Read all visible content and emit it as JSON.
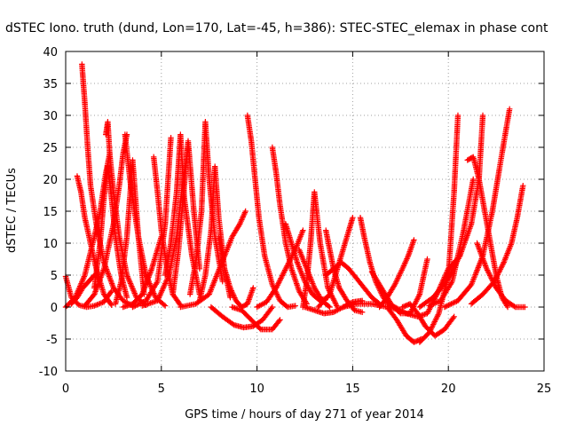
{
  "chart_data": {
    "type": "scatter",
    "title": "dSTEC Iono. truth (dund, Lon=170, Lat=-45, h=386): STEC-STEC_elemax in phase cont",
    "xlabel": "GPS time / hours of day 271 of year 2014",
    "ylabel": "dSTEC  / TECUs",
    "xlim": [
      0,
      25
    ],
    "ylim": [
      -10,
      40
    ],
    "xticks": [
      0,
      5,
      10,
      15,
      20,
      25
    ],
    "yticks": [
      -10,
      -5,
      0,
      5,
      10,
      15,
      20,
      25,
      30,
      35,
      40
    ],
    "grid": true,
    "marker": "plus",
    "color": "#ff0000",
    "series": [
      {
        "x": [
          0.0,
          0.3,
          0.7,
          1.1,
          1.5,
          2.0,
          2.4
        ],
        "y": [
          4.8,
          1.5,
          0.3,
          0.0,
          0.2,
          0.8,
          2.5
        ]
      },
      {
        "x": [
          0.3,
          0.6,
          0.9,
          1.2,
          1.5
        ],
        "y": [
          0.5,
          1.5,
          3.0,
          4.0,
          5.0
        ]
      },
      {
        "x": [
          0.6,
          0.8,
          1.0,
          1.3,
          1.6,
          2.0,
          2.4
        ],
        "y": [
          20.5,
          18.0,
          14.0,
          10.0,
          6.0,
          2.0,
          0.3
        ]
      },
      {
        "x": [
          0.85,
          1.0,
          1.15,
          1.3,
          1.6,
          2.0,
          2.5,
          3.0,
          3.5
        ],
        "y": [
          38.0,
          32.0,
          25.0,
          19.0,
          13.0,
          7.0,
          3.0,
          1.0,
          0.2
        ]
      },
      {
        "x": [
          0.0,
          0.5,
          1.0,
          1.5,
          1.8,
          2.1,
          2.3
        ],
        "y": [
          0.0,
          1.5,
          5.0,
          11.0,
          15.0,
          21.0,
          24.0
        ]
      },
      {
        "x": [
          1.5,
          1.8,
          2.0,
          2.2,
          2.4,
          2.6,
          2.9,
          3.2
        ],
        "y": [
          3.0,
          10.0,
          17.0,
          22.0,
          17.0,
          11.0,
          5.0,
          1.5
        ]
      },
      {
        "x": [
          2.1,
          2.2,
          2.3,
          2.5,
          2.8,
          3.2,
          3.7,
          4.2
        ],
        "y": [
          27.0,
          29.0,
          24.0,
          18.0,
          11.0,
          5.0,
          1.5,
          0.3
        ]
      },
      {
        "x": [
          1.0,
          1.5,
          2.0,
          2.5,
          2.8,
          3.0,
          3.2
        ],
        "y": [
          0.2,
          2.0,
          6.0,
          13.0,
          19.0,
          24.0,
          27.0
        ]
      },
      {
        "x": [
          3.1,
          3.4,
          3.8,
          4.2,
          4.7,
          5.2
        ],
        "y": [
          27.0,
          19.0,
          11.0,
          5.0,
          1.5,
          0.2
        ]
      },
      {
        "x": [
          2.6,
          2.9,
          3.2,
          3.5,
          3.8,
          4.1
        ],
        "y": [
          0.5,
          4.0,
          11.0,
          23.0,
          11.0,
          2.0
        ]
      },
      {
        "x": [
          3.0,
          3.5,
          4.0,
          4.5,
          5.0
        ],
        "y": [
          0.0,
          0.5,
          2.0,
          6.0,
          11.0
        ]
      },
      {
        "x": [
          4.6,
          4.8,
          5.0,
          5.3,
          5.6,
          6.0
        ],
        "y": [
          23.5,
          18.0,
          12.0,
          6.0,
          2.0,
          0.3
        ]
      },
      {
        "x": [
          3.5,
          4.2,
          4.8,
          5.2,
          5.5
        ],
        "y": [
          0.0,
          1.0,
          4.0,
          13.0,
          26.5
        ]
      },
      {
        "x": [
          5.2,
          5.5,
          5.8,
          6.0,
          6.2,
          6.6,
          7.0
        ],
        "y": [
          5.0,
          10.0,
          18.0,
          27.0,
          17.0,
          8.0,
          2.0
        ]
      },
      {
        "x": [
          5.6,
          5.9,
          6.2,
          6.4,
          6.7,
          7.0
        ],
        "y": [
          2.0,
          9.0,
          19.0,
          26.0,
          15.0,
          6.0
        ]
      },
      {
        "x": [
          4.0,
          4.8,
          5.4,
          5.8,
          6.1,
          6.4
        ],
        "y": [
          0.2,
          1.0,
          5.0,
          11.0,
          19.0,
          25.0
        ]
      },
      {
        "x": [
          6.5,
          6.8,
          7.1,
          7.3,
          7.5,
          7.8,
          8.2
        ],
        "y": [
          2.0,
          7.0,
          15.0,
          29.0,
          20.0,
          11.0,
          4.0
        ]
      },
      {
        "x": [
          7.0,
          7.3,
          7.6,
          7.8,
          8.0,
          8.3,
          8.6
        ],
        "y": [
          1.0,
          5.0,
          12.0,
          22.0,
          14.0,
          6.0,
          1.5
        ]
      },
      {
        "x": [
          6.0,
          6.8,
          7.5,
          7.9,
          8.3,
          8.7,
          9.1,
          9.4
        ],
        "y": [
          0.0,
          0.5,
          2.0,
          5.0,
          8.0,
          11.0,
          13.0,
          15.0
        ]
      },
      {
        "x": [
          8.0,
          8.3,
          8.6,
          8.9,
          9.2,
          9.5,
          9.8
        ],
        "y": [
          11.0,
          6.0,
          3.0,
          1.0,
          0.0,
          0.5,
          3.0
        ]
      },
      {
        "x": [
          7.6,
          8.2,
          8.8,
          9.3,
          9.8,
          10.3,
          10.8
        ],
        "y": [
          0.0,
          -1.5,
          -2.8,
          -3.2,
          -3.0,
          -2.0,
          0.0
        ]
      },
      {
        "x": [
          9.5,
          9.7,
          9.9,
          10.1,
          10.4,
          10.8,
          11.2,
          11.6,
          12.0
        ],
        "y": [
          30.0,
          26.0,
          20.0,
          14.0,
          8.0,
          3.5,
          1.0,
          0.0,
          0.2
        ]
      },
      {
        "x": [
          8.7,
          9.2,
          9.7,
          10.2,
          10.8,
          11.2
        ],
        "y": [
          0.0,
          -0.5,
          -2.0,
          -3.5,
          -3.5,
          -2.0
        ]
      },
      {
        "x": [
          10.8,
          11.0,
          11.2,
          11.5,
          11.8,
          12.2,
          12.6
        ],
        "y": [
          25.0,
          21.0,
          16.0,
          10.0,
          6.0,
          2.5,
          0.5
        ]
      },
      {
        "x": [
          10.0,
          10.5,
          11.0,
          11.5,
          12.0,
          12.4
        ],
        "y": [
          0.0,
          0.8,
          3.0,
          6.0,
          9.0,
          12.0
        ]
      },
      {
        "x": [
          11.5,
          11.8,
          12.1,
          12.5,
          12.9,
          13.3,
          13.7
        ],
        "y": [
          13.0,
          10.0,
          7.0,
          4.0,
          2.0,
          1.0,
          1.5
        ]
      },
      {
        "x": [
          12.2,
          12.6,
          13.0,
          13.4,
          13.8
        ],
        "y": [
          9.0,
          6.0,
          3.0,
          1.0,
          0.0
        ]
      },
      {
        "x": [
          12.4,
          12.6,
          12.8,
          13.0,
          13.3,
          13.7,
          14.2
        ],
        "y": [
          0.0,
          4.0,
          10.0,
          18.0,
          10.0,
          3.0,
          0.0
        ]
      },
      {
        "x": [
          13.6,
          13.8,
          14.0,
          14.3,
          14.7,
          15.1,
          15.5
        ],
        "y": [
          12.0,
          9.0,
          6.0,
          3.0,
          1.0,
          -0.5,
          -0.8
        ]
      },
      {
        "x": [
          12.5,
          13.0,
          13.5,
          14.0,
          14.5,
          15.0,
          15.5
        ],
        "y": [
          0.0,
          -0.5,
          -1.0,
          -0.8,
          0.0,
          0.8,
          1.0
        ]
      },
      {
        "x": [
          13.6,
          14.0,
          14.4,
          14.8,
          15.2,
          15.6,
          16.0,
          16.4
        ],
        "y": [
          5.0,
          6.0,
          7.0,
          6.0,
          4.5,
          3.0,
          1.5,
          0.5
        ]
      },
      {
        "x": [
          13.2,
          13.8,
          14.4,
          14.8,
          15.0
        ],
        "y": [
          0.0,
          2.0,
          8.0,
          12.0,
          14.0
        ]
      },
      {
        "x": [
          15.4,
          15.6,
          15.9,
          16.2,
          16.6,
          17.0,
          17.4
        ],
        "y": [
          14.0,
          11.0,
          7.0,
          4.0,
          1.5,
          0.0,
          -0.5
        ]
      },
      {
        "x": [
          14.5,
          15.2,
          16.0,
          16.8,
          17.3,
          17.8,
          18.2,
          18.6
        ],
        "y": [
          0.0,
          0.5,
          0.5,
          0.0,
          -2.0,
          -4.5,
          -5.5,
          -5.0
        ]
      },
      {
        "x": [
          16.4,
          16.8,
          17.2,
          17.6,
          17.9,
          18.2
        ],
        "y": [
          0.0,
          1.5,
          3.5,
          6.0,
          8.0,
          10.5
        ]
      },
      {
        "x": [
          16.0,
          16.5,
          17.0,
          17.5,
          18.0,
          18.5,
          18.9
        ],
        "y": [
          5.5,
          3.0,
          0.5,
          -1.0,
          -1.0,
          2.0,
          7.5
        ]
      },
      {
        "x": [
          17.2,
          17.8,
          18.4,
          18.9,
          19.4,
          20.0,
          20.6
        ],
        "y": [
          0.0,
          -1.0,
          -1.5,
          -1.0,
          2.0,
          6.0,
          8.0
        ]
      },
      {
        "x": [
          17.6,
          18.0,
          18.4,
          18.8,
          19.3,
          19.8,
          20.3
        ],
        "y": [
          0.0,
          0.5,
          -1.0,
          -3.0,
          -4.5,
          -3.5,
          -1.5
        ]
      },
      {
        "x": [
          18.5,
          19.0,
          19.5,
          20.0,
          20.3,
          20.5
        ],
        "y": [
          -5.5,
          -4.0,
          -1.0,
          5.0,
          18.0,
          30.0
        ]
      },
      {
        "x": [
          18.5,
          19.2,
          19.9,
          20.6,
          21.2,
          21.6,
          21.8
        ],
        "y": [
          0.0,
          1.5,
          4.0,
          8.0,
          13.0,
          20.0,
          30.0
        ]
      },
      {
        "x": [
          19.0,
          19.6,
          20.2,
          20.8,
          21.3
        ],
        "y": [
          0.2,
          1.0,
          4.0,
          12.0,
          20.0
        ]
      },
      {
        "x": [
          21.0,
          21.3,
          21.6,
          21.9,
          22.2,
          22.5,
          22.8,
          23.1
        ],
        "y": [
          23.0,
          23.5,
          20.0,
          15.0,
          10.0,
          5.0,
          1.5,
          0.0
        ]
      },
      {
        "x": [
          19.8,
          20.5,
          21.2,
          21.8,
          22.3,
          22.8,
          23.2
        ],
        "y": [
          0.0,
          1.0,
          3.5,
          8.0,
          15.0,
          24.0,
          31.0
        ]
      },
      {
        "x": [
          21.2,
          21.8,
          22.4,
          22.9,
          23.3,
          23.6,
          23.9
        ],
        "y": [
          0.5,
          2.0,
          4.0,
          7.0,
          10.0,
          14.0,
          19.0
        ]
      },
      {
        "x": [
          21.5,
          22.0,
          22.5,
          23.0,
          23.5,
          24.0
        ],
        "y": [
          10.0,
          6.0,
          3.0,
          1.0,
          0.0,
          0.0
        ]
      }
    ]
  }
}
